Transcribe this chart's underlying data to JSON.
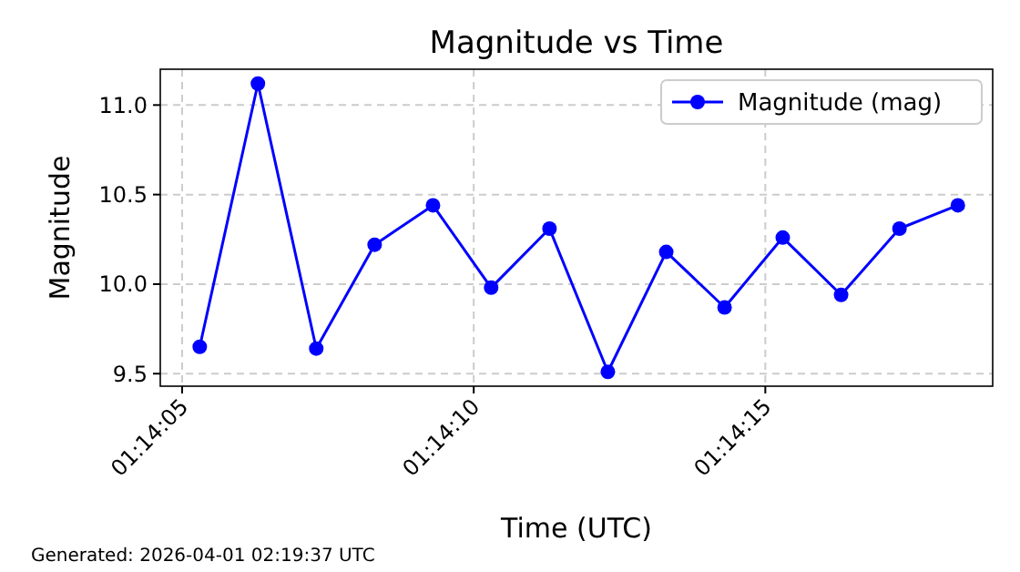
{
  "chart_data": {
    "type": "line",
    "title": "Magnitude vs Time",
    "xlabel": "Time (UTC)",
    "ylabel": "Magnitude",
    "x": [
      1.234806,
      1.235083,
      1.235361,
      1.235639,
      1.235917,
      1.236194,
      1.236472,
      1.23675,
      1.237028,
      1.237306,
      1.237583,
      1.237861,
      1.238139,
      1.238417
    ],
    "series": [
      {
        "name": "Magnitude (mag)",
        "color": "#0000ff",
        "values": [
          9.65,
          11.12,
          9.64,
          10.22,
          10.44,
          9.98,
          10.31,
          9.51,
          10.18,
          9.87,
          10.26,
          9.94,
          10.31,
          10.44
        ]
      }
    ],
    "xlim": [
      1.234618,
      1.238583
    ],
    "xticks": [
      {
        "value": 1.234722,
        "label": "01:14:05"
      },
      {
        "value": 1.236111,
        "label": "01:14:10"
      },
      {
        "value": 1.2375,
        "label": "01:14:15"
      }
    ],
    "ylim": [
      9.43,
      11.2
    ],
    "yticks": [
      {
        "value": 9.5,
        "label": "9.5"
      },
      {
        "value": 10,
        "label": "10.0"
      },
      {
        "value": 10.5,
        "label": "10.5"
      },
      {
        "value": 11,
        "label": "11.0"
      }
    ],
    "grid": true,
    "legend": "top right",
    "marker": "circle",
    "line_style": "solid",
    "annotations": [
      "Generated: 2026-04-01 02:19:37 UTC"
    ]
  }
}
